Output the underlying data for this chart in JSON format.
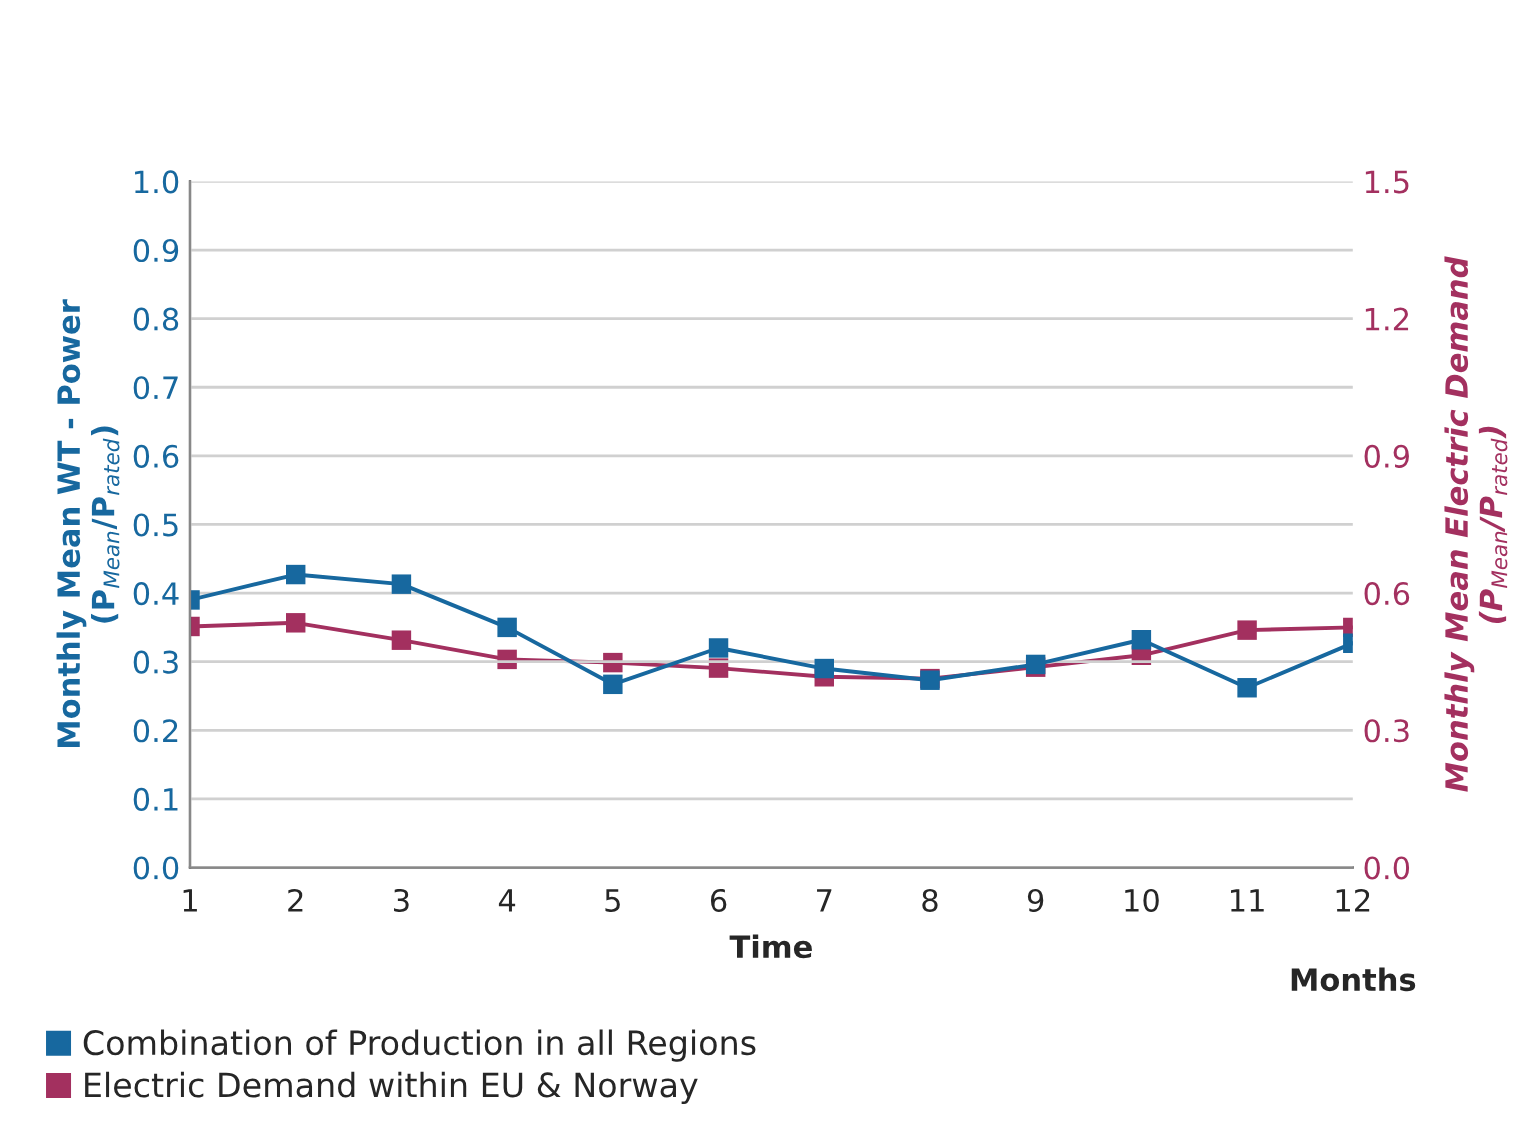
{
  "chart_data": {
    "type": "line",
    "x": [
      1,
      2,
      3,
      4,
      5,
      6,
      7,
      8,
      9,
      10,
      11,
      12
    ],
    "series": [
      {
        "name": "Combination of Production in all Regions",
        "color": "#17689f",
        "values": [
          0.39,
          0.427,
          0.413,
          0.35,
          0.267,
          0.32,
          0.29,
          0.273,
          0.296,
          0.332,
          0.262,
          0.327
        ]
      },
      {
        "name": "Electric Demand within EU & Norway",
        "color": "#a3305f",
        "axis": "y2",
        "values": [
          0.527,
          0.535,
          0.497,
          0.455,
          0.448,
          0.436,
          0.417,
          0.413,
          0.438,
          0.464,
          0.519,
          0.525
        ]
      }
    ],
    "xlabel": "Time",
    "ylabel": "Monthly Mean WT - Power\n(P$_{Mean}$/P$_{rated}$)",
    "y2label": "Monthly Mean Electric Demand\n(P$_{Mean}$/P$_{rated}$)",
    "annotations": [
      "Months"
    ],
    "xlim": [
      1,
      12
    ],
    "xticks": [
      1,
      2,
      3,
      4,
      5,
      6,
      7,
      8,
      9,
      10,
      11,
      12
    ],
    "ylim": [
      0,
      1
    ],
    "yticks": [
      {
        "value": 0,
        "label": "0.0"
      },
      0.1,
      0.2,
      0.3,
      0.4,
      0.5,
      0.6,
      0.7,
      0.8,
      0.9,
      {
        "value": 1,
        "label": "1.0"
      }
    ],
    "y2lim": [
      0,
      1.5
    ],
    "y2ticks": [
      {
        "value": 0,
        "label": "0.0"
      },
      0.3,
      0.6,
      0.9,
      1.2,
      1.5
    ],
    "grid": "y",
    "legend": "bottom",
    "marker": "square",
    "line_style": "solid"
  }
}
